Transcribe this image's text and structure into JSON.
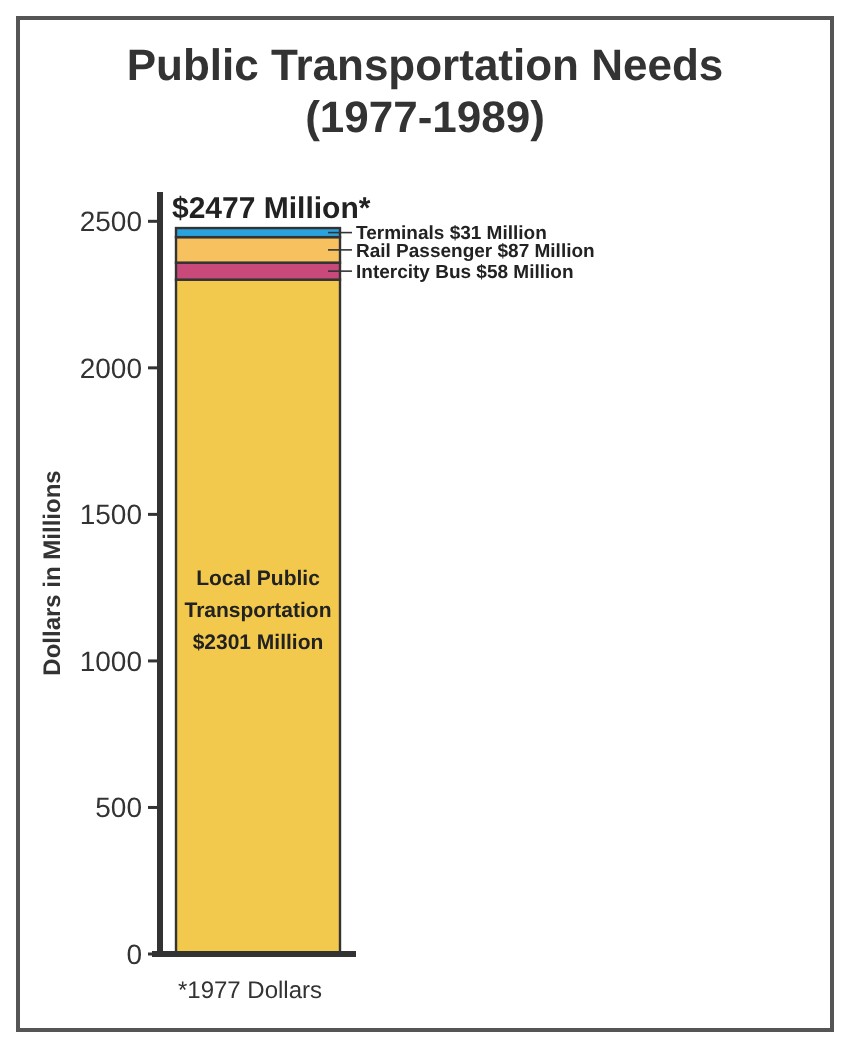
{
  "chart_data": {
    "type": "bar",
    "title": "Public Transportation Needs (1977-1989)",
    "ylabel": "Dollars in Millions",
    "categories": [
      null
    ],
    "stacked": true,
    "series": [
      {
        "name": "Local Public Transportation",
        "color": "#f2c94c",
        "values": [
          2301
        ],
        "value_labels": [
          "$2301 Million"
        ]
      },
      {
        "name": "Intercity Bus $58 Million",
        "color": "#c8497a",
        "values": [
          58
        ]
      },
      {
        "name": "Rail Passenger $87 Million",
        "color": "#f7c160",
        "values": [
          87
        ]
      },
      {
        "name": "Terminals $31 Million",
        "color": "#2aa3dc",
        "values": [
          31
        ]
      }
    ],
    "totals": [
      "$2477 Million*"
    ],
    "annotations": [
      "*1977 Dollars"
    ],
    "ylim": [
      0,
      2600
    ],
    "yticks": [
      0,
      500,
      1000,
      1500,
      2000,
      2500
    ],
    "grid": false,
    "legend": "right"
  }
}
